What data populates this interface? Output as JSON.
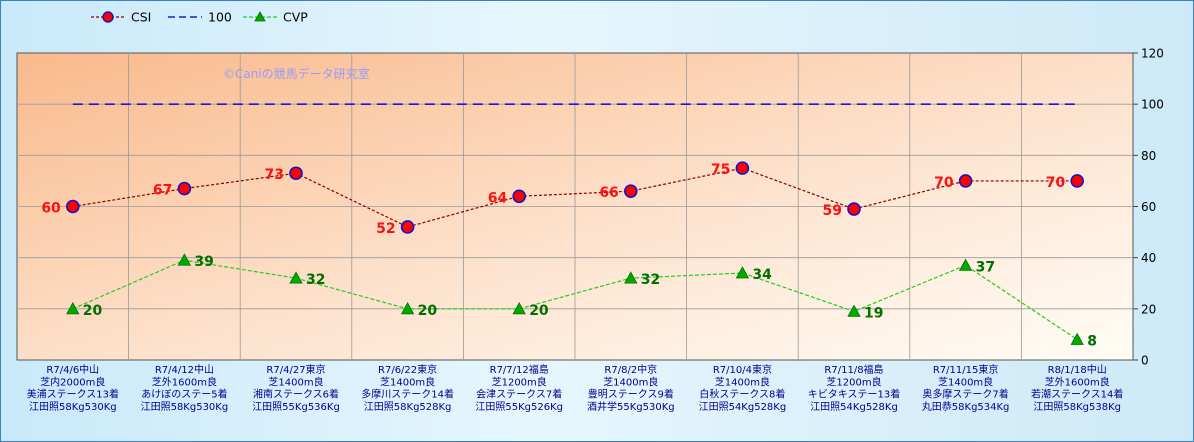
{
  "chart_data": {
    "type": "line",
    "watermark": "©Caniの競馬データ研究室",
    "legend_position": "top-left",
    "ylim": [
      0,
      120
    ],
    "y_ticks": [
      "0",
      "20",
      "40",
      "60",
      "80",
      "100",
      "120"
    ],
    "grid": true,
    "categories": [
      [
        "R7/4/6中山",
        "芝内2000m良",
        "美浦ステークス13着",
        "江田照58Kg530Kg"
      ],
      [
        "R7/4/12中山",
        "芝外1600m良",
        "あけぼのステー5着",
        "江田照58Kg530Kg"
      ],
      [
        "R7/4/27東京",
        "芝1400m良",
        "湘南ステークス6着",
        "江田照55Kg536Kg"
      ],
      [
        "R7/6/22東京",
        "芝1400m良",
        "多摩川ステーク14着",
        "江田照58Kg528Kg"
      ],
      [
        "R7/7/12福島",
        "芝1200m良",
        "会津ステークス7着",
        "江田照55Kg526Kg"
      ],
      [
        "R7/8/2中京",
        "芝1400m良",
        "豊明ステークス9着",
        "酒井学55Kg530Kg"
      ],
      [
        "R7/10/4東京",
        "芝1400m良",
        "白秋ステークス8着",
        "江田照54Kg528Kg"
      ],
      [
        "R7/11/8福島",
        "芝1200m良",
        "キビタキステー13着",
        "江田照54Kg528Kg"
      ],
      [
        "R7/11/15東京",
        "芝1400m良",
        "奥多摩ステーク7着",
        "丸田恭58Kg534Kg"
      ],
      [
        "R8/1/18中山",
        "芝外1600m良",
        "若潮ステークス14着",
        "江田照58Kg538Kg"
      ]
    ],
    "series": [
      {
        "name": "CSI",
        "values": [
          60,
          67,
          73,
          52,
          64,
          66,
          75,
          59,
          70,
          70
        ],
        "color": "#8b0000",
        "marker": "circle",
        "marker_fill": "#ff0000",
        "marker_stroke": "#1515c8",
        "label_color": "#ff1010"
      },
      {
        "name": "100",
        "values": [
          100,
          100,
          100,
          100,
          100,
          100,
          100,
          100,
          100,
          100
        ],
        "color": "#1a1ad0"
      },
      {
        "name": "CVP",
        "values": [
          20,
          39,
          32,
          20,
          20,
          32,
          34,
          19,
          37,
          8
        ],
        "color": "#22cc22",
        "marker": "triangle",
        "marker_fill": "#00aa00",
        "label_color": "#007000"
      }
    ]
  }
}
